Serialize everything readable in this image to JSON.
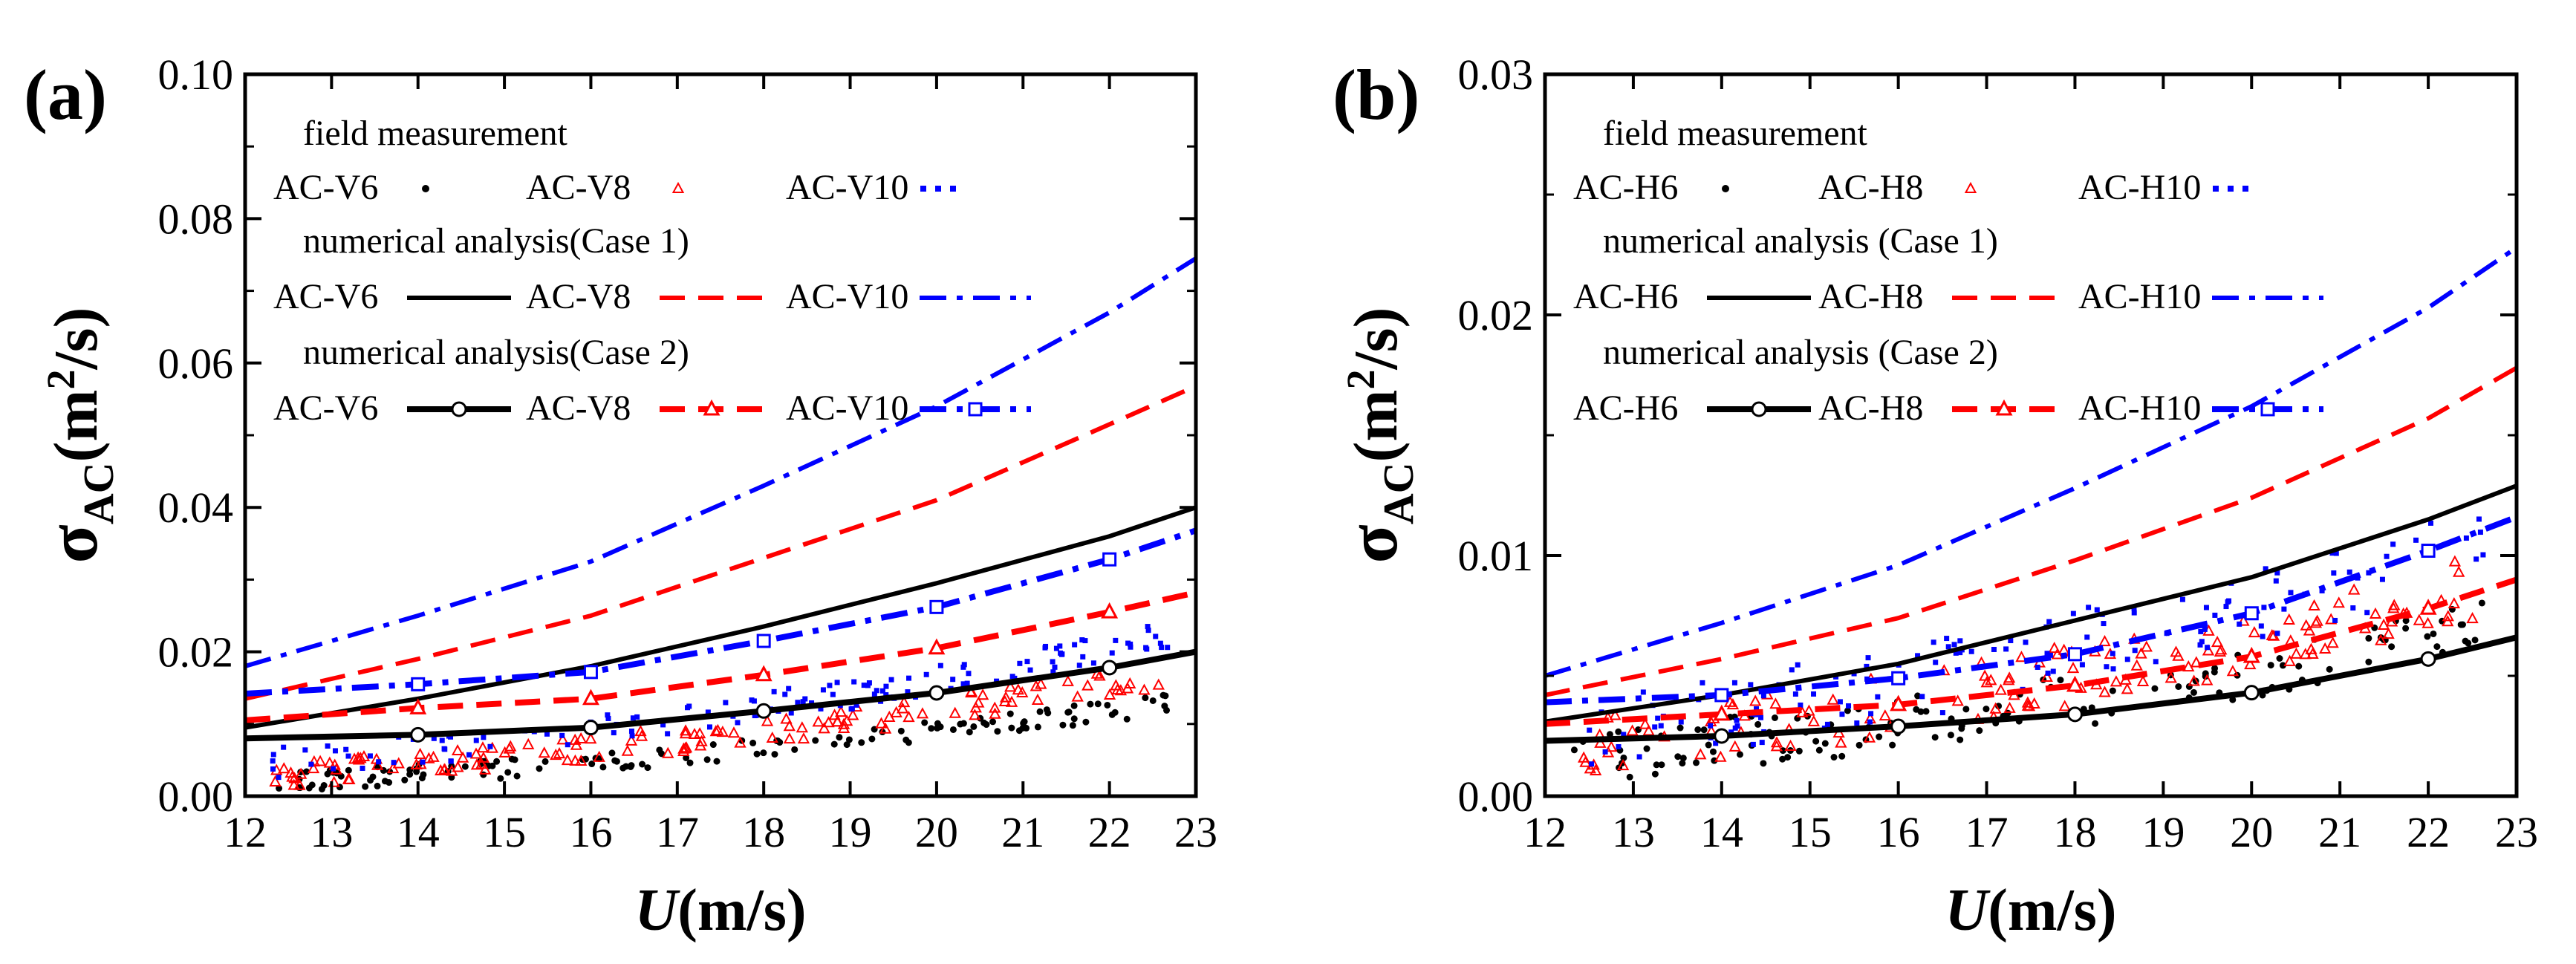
{
  "chart_data": [
    {
      "type": "scatter",
      "panel_label": "(a)",
      "xlabel_italic": "U",
      "xlabel_rest": "(m/s)",
      "ylabel_base": "σ",
      "ylabel_sub": "AC",
      "ylabel_paren_open": "(m",
      "ylabel_sup": "2",
      "ylabel_paren_close": "/s)",
      "xlim": [
        12,
        23
      ],
      "ylim": [
        0,
        0.1
      ],
      "x_ticks": [
        "12",
        "13",
        "14",
        "15",
        "16",
        "17",
        "18",
        "19",
        "20",
        "21",
        "22",
        "23"
      ],
      "y_ticks": [
        "0.00",
        "0.02",
        "0.04",
        "0.06",
        "0.08",
        "0.10"
      ],
      "y_tick_values": [
        0,
        0.02,
        0.04,
        0.06,
        0.08,
        0.1
      ],
      "legend": {
        "field_title": "field measurement",
        "case1_title": "numerical analysis(Case 1)",
        "case2_title": "numerical analysis(Case 2)",
        "labels": [
          "AC-V6",
          "AC-V8",
          "AC-V10"
        ]
      },
      "field_measurement": [
        {
          "name": "AC-V6",
          "color": "#000000",
          "marker": "dot",
          "base": 0.0018,
          "slope": 0.00055,
          "noise": 0.0014
        },
        {
          "name": "AC-V8",
          "color": "#ff0000",
          "marker": "triangle",
          "base": 0.0028,
          "slope": 0.0007,
          "noise": 0.0018
        },
        {
          "name": "AC-V10",
          "color": "#0000ff",
          "marker": "square",
          "base": 0.0042,
          "slope": 0.0009,
          "noise": 0.0022
        }
      ],
      "case1": [
        {
          "name": "AC-V6",
          "color": "#000000",
          "dash": "solid",
          "x": [
            12,
            14,
            16,
            18,
            20,
            22,
            23
          ],
          "y": [
            0.0095,
            0.0135,
            0.018,
            0.0235,
            0.0295,
            0.036,
            0.04
          ]
        },
        {
          "name": "AC-V8",
          "color": "#ff0000",
          "dash": "dash",
          "x": [
            12,
            14,
            16,
            18,
            20,
            22,
            23
          ],
          "y": [
            0.0135,
            0.019,
            0.025,
            0.033,
            0.041,
            0.0515,
            0.0568
          ]
        },
        {
          "name": "AC-V10",
          "color": "#0000ff",
          "dash": "dashdot",
          "x": [
            12,
            14,
            16,
            18,
            20,
            22,
            23
          ],
          "y": [
            0.018,
            0.025,
            0.0325,
            0.043,
            0.054,
            0.067,
            0.0745
          ]
        }
      ],
      "case2": [
        {
          "name": "AC-V6",
          "color": "#000000",
          "dash": "solid",
          "marker": "circle",
          "x": [
            12,
            14,
            16,
            18,
            20,
            22,
            23
          ],
          "y": [
            0.008,
            0.0085,
            0.0095,
            0.0118,
            0.0143,
            0.0178,
            0.02
          ]
        },
        {
          "name": "AC-V8",
          "color": "#ff0000",
          "dash": "dash",
          "marker": "triangle",
          "x": [
            12,
            14,
            16,
            18,
            20,
            22,
            23
          ],
          "y": [
            0.0105,
            0.0122,
            0.0135,
            0.0168,
            0.0205,
            0.0255,
            0.0282
          ]
        },
        {
          "name": "AC-V10",
          "color": "#0000ff",
          "dash": "dashdot",
          "marker": "square",
          "x": [
            12,
            14,
            16,
            18,
            20,
            22,
            23
          ],
          "y": [
            0.0142,
            0.0155,
            0.0172,
            0.0215,
            0.0262,
            0.0328,
            0.0368
          ]
        }
      ]
    },
    {
      "type": "scatter",
      "panel_label": "(b)",
      "xlabel_italic": "U",
      "xlabel_rest": "(m/s)",
      "ylabel_base": "σ",
      "ylabel_sub": "AC",
      "ylabel_paren_open": "(m",
      "ylabel_sup": "2",
      "ylabel_paren_close": "/s)",
      "xlim": [
        12,
        23
      ],
      "ylim": [
        0,
        0.03
      ],
      "x_ticks": [
        "12",
        "13",
        "14",
        "15",
        "16",
        "17",
        "18",
        "19",
        "20",
        "21",
        "22",
        "23"
      ],
      "y_ticks": [
        "0.00",
        "0.01",
        "0.02",
        "0.03"
      ],
      "y_tick_values": [
        0,
        0.01,
        0.02,
        0.03
      ],
      "legend": {
        "field_title": "field measurement",
        "case1_title": "numerical analysis (Case 1)",
        "case2_title": "numerical analysis (Case 2)",
        "labels": [
          "AC-H6",
          "AC-H8",
          "AC-H10"
        ]
      },
      "field_measurement": [
        {
          "name": "AC-H6",
          "color": "#000000",
          "marker": "dot",
          "base": 0.0015,
          "slope": 0.00028,
          "noise": 0.0011
        },
        {
          "name": "AC-H8",
          "color": "#ff0000",
          "marker": "triangle",
          "base": 0.0019,
          "slope": 0.00035,
          "noise": 0.0013
        },
        {
          "name": "AC-H10",
          "color": "#0000ff",
          "marker": "square",
          "base": 0.0026,
          "slope": 0.0004,
          "noise": 0.0016
        }
      ],
      "case1": [
        {
          "name": "AC-H6",
          "color": "#000000",
          "dash": "solid",
          "x": [
            12,
            14,
            16,
            18,
            20,
            22,
            23
          ],
          "y": [
            0.0031,
            0.0042,
            0.0055,
            0.0073,
            0.0091,
            0.0115,
            0.0129
          ]
        },
        {
          "name": "AC-H8",
          "color": "#ff0000",
          "dash": "dash",
          "x": [
            12,
            14,
            16,
            18,
            20,
            22,
            23
          ],
          "y": [
            0.0042,
            0.0057,
            0.0074,
            0.0098,
            0.0124,
            0.0157,
            0.0178
          ]
        },
        {
          "name": "AC-H10",
          "color": "#0000ff",
          "dash": "dashdot",
          "x": [
            12,
            14,
            16,
            18,
            20,
            22,
            23
          ],
          "y": [
            0.005,
            0.0072,
            0.0096,
            0.0128,
            0.0162,
            0.0203,
            0.0228
          ]
        }
      ],
      "case2": [
        {
          "name": "AC-H6",
          "color": "#000000",
          "dash": "solid",
          "marker": "circle",
          "x": [
            12,
            14,
            16,
            18,
            20,
            22,
            23
          ],
          "y": [
            0.0023,
            0.0025,
            0.0029,
            0.0034,
            0.0043,
            0.0057,
            0.0066
          ]
        },
        {
          "name": "AC-H8",
          "color": "#ff0000",
          "dash": "dash",
          "marker": "triangle",
          "x": [
            12,
            14,
            16,
            18,
            20,
            22,
            23
          ],
          "y": [
            0.003,
            0.0034,
            0.0038,
            0.0046,
            0.0058,
            0.0078,
            0.009
          ]
        },
        {
          "name": "AC-H10",
          "color": "#0000ff",
          "dash": "dashdot",
          "marker": "square",
          "x": [
            12,
            14,
            16,
            18,
            20,
            22,
            23
          ],
          "y": [
            0.0039,
            0.0042,
            0.0049,
            0.0059,
            0.0076,
            0.0102,
            0.0116
          ]
        }
      ]
    }
  ]
}
